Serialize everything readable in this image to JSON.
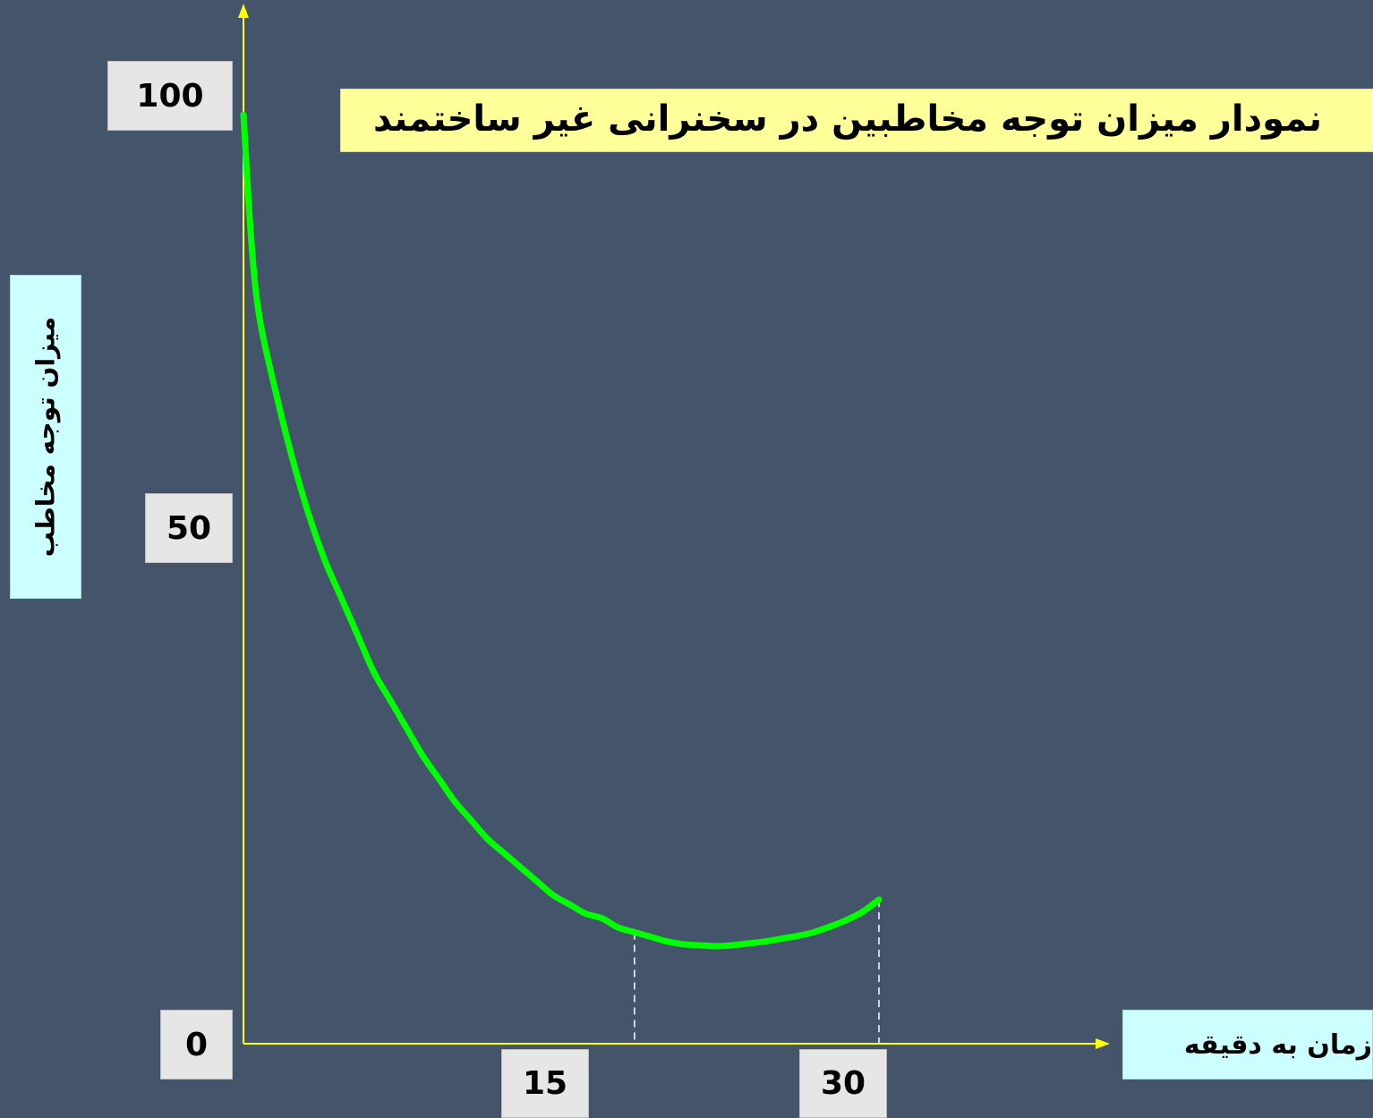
{
  "chart_data": {
    "type": "line",
    "title": "نمودار میزان توجه مخاطبین در سخنرانی غیر ساختمند",
    "xlabel": "زمان به دقیقه",
    "ylabel": "میزان توجه مخاطب",
    "x_ticks": [
      "15",
      "30"
    ],
    "y_ticks": [
      "100",
      "50",
      "0"
    ],
    "xlim": [
      0,
      39
    ],
    "ylim": [
      0,
      100
    ],
    "grid": false,
    "legend": "none",
    "series": [
      {
        "color": "#00ff00",
        "x": [
          0,
          0.5,
          1,
          2,
          3,
          4,
          5,
          6,
          7,
          8,
          9,
          10,
          11,
          12,
          13,
          14,
          15,
          16,
          17,
          18,
          19,
          20,
          21,
          22,
          23,
          24,
          25,
          26,
          27,
          28,
          29,
          30,
          31,
          32,
          33,
          34,
          35,
          36,
          37,
          38,
          39
        ],
        "values": [
          100,
          86,
          78,
          70,
          63,
          57,
          52,
          48,
          44,
          40,
          37,
          34,
          31,
          28.5,
          26,
          24,
          22,
          20.5,
          19,
          17.5,
          16,
          15,
          14,
          13.5,
          12.5,
          12,
          11.5,
          11,
          10.7,
          10.6,
          10.5,
          10.6,
          10.8,
          11,
          11.3,
          11.6,
          12,
          12.6,
          13.3,
          14.2,
          15.5
        ]
      }
    ],
    "reference_lines_x": [
      24,
      39
    ],
    "axis_color": "#ffff00"
  },
  "colors": {
    "background": "#44546a",
    "title_box": "#ffff99",
    "tick_box": "#e6e6e6",
    "axis_label_box": "#ccffff"
  }
}
